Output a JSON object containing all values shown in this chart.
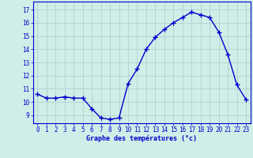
{
  "hours": [
    0,
    1,
    2,
    3,
    4,
    5,
    6,
    7,
    8,
    9,
    10,
    11,
    12,
    13,
    14,
    15,
    16,
    17,
    18,
    19,
    20,
    21,
    22,
    23
  ],
  "temperatures": [
    10.6,
    10.3,
    10.3,
    10.4,
    10.3,
    10.3,
    9.5,
    8.8,
    8.7,
    8.8,
    11.4,
    12.5,
    14.0,
    14.9,
    15.5,
    16.0,
    16.4,
    16.8,
    16.6,
    16.4,
    15.3,
    13.6,
    11.3,
    10.2
  ],
  "line_color": "#0000cc",
  "marker": "+",
  "marker_size": 4,
  "bg_color": "#d0eee8",
  "grid_color": "#aacccc",
  "xlabel": "Graphe des températures (°c)",
  "xlabel_color": "#0000cc",
  "ylabel_ticks": [
    9,
    10,
    11,
    12,
    13,
    14,
    15,
    16,
    17
  ],
  "ylim": [
    8.4,
    17.6
  ],
  "xlim": [
    -0.5,
    23.5
  ],
  "tick_label_color": "#0000cc",
  "axis_color": "#0000cc",
  "linewidth": 1.0,
  "tick_fontsize": 5.5,
  "xlabel_fontsize": 6.0
}
